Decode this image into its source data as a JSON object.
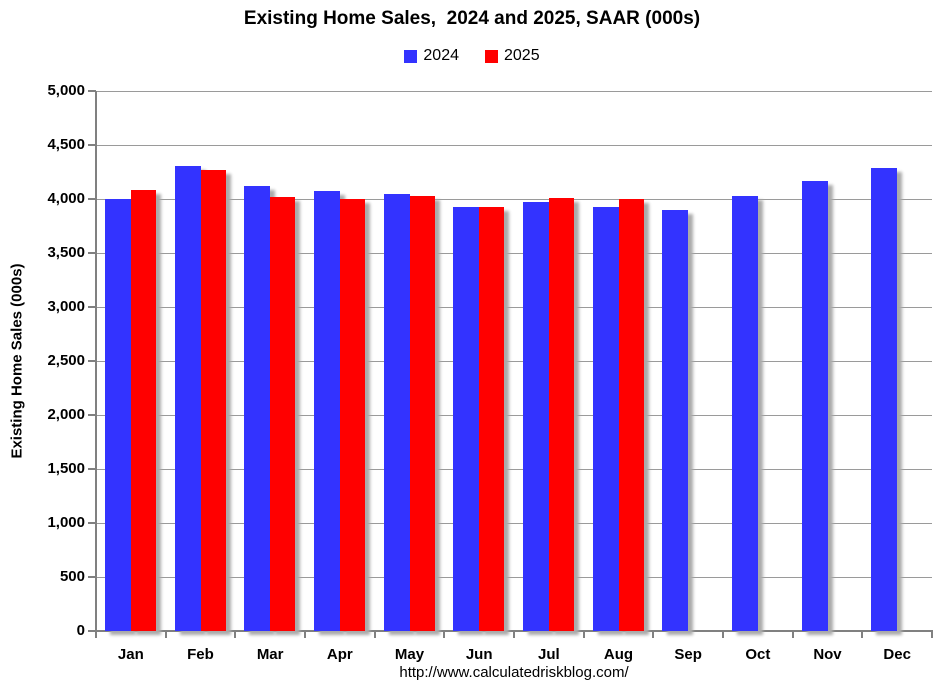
{
  "title": "Existing Home Sales,  2024 and 2025, SAAR (000s)",
  "legend": [
    {
      "label": "2024",
      "color": "#3333FF"
    },
    {
      "label": "2025",
      "color": "#FF0000"
    }
  ],
  "y_axis_title": "Existing Home Sales (000s)",
  "footer_url": "http://www.calculatedriskblog.com/",
  "colors": {
    "bar_2024": "#3333FF",
    "bar_2025": "#FF0000",
    "gridline": "#9a9a9a",
    "axis": "#808080",
    "shadow": "#ababab",
    "background": "#ffffff",
    "text": "#000000"
  },
  "chart_data": {
    "type": "bar",
    "title": "Existing Home Sales,  2024 and 2025, SAAR (000s)",
    "ylabel": "Existing Home Sales (000s)",
    "xlabel": "",
    "categories": [
      "Jan",
      "Feb",
      "Mar",
      "Apr",
      "May",
      "Jun",
      "Jul",
      "Aug",
      "Sep",
      "Oct",
      "Nov",
      "Dec"
    ],
    "series": [
      {
        "name": "2024",
        "color": "#3333FF",
        "values": [
          4000,
          4310,
          4120,
          4070,
          4050,
          3930,
          3970,
          3930,
          3900,
          4030,
          4170,
          4290
        ]
      },
      {
        "name": "2025",
        "color": "#FF0000",
        "values": [
          4080,
          4270,
          4020,
          4000,
          4030,
          3930,
          4010,
          4000,
          null,
          null,
          null,
          null
        ]
      }
    ],
    "ylim": [
      0,
      5000
    ],
    "ytick_step": 500,
    "ytick_labels": [
      "0",
      "500",
      "1,000",
      "1,500",
      "2,000",
      "2,500",
      "3,000",
      "3,500",
      "4,000",
      "4,500",
      "5,000"
    ],
    "grid": true,
    "legend_position": "top"
  }
}
